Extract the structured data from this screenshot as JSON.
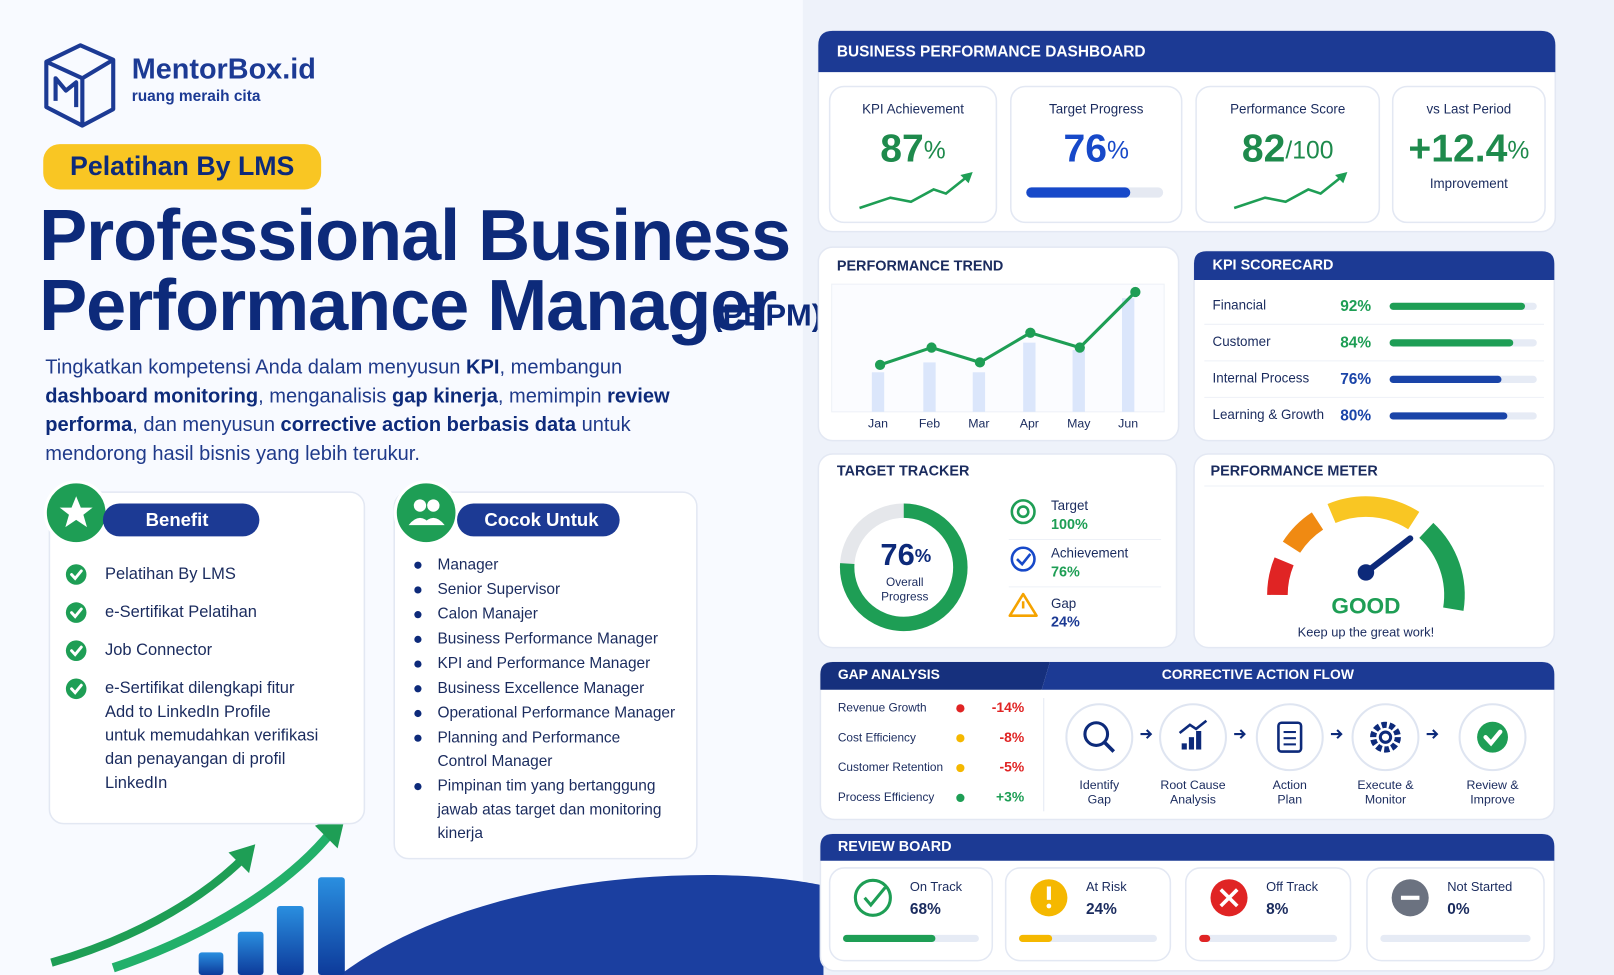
{
  "brand": {
    "name": "MentorBox.id",
    "tagline": "ruang meraih cita"
  },
  "badge": "Pelatihan By LMS",
  "title": {
    "line1": "Professional Business",
    "line2": "Performance Manager",
    "abbr": "(PBPM)"
  },
  "description": [
    [
      {
        "t": "Tingkatkan kompetensi Anda dalam menyusun "
      },
      {
        "t": "KPI",
        "b": true
      },
      {
        "t": ", membangun"
      }
    ],
    [
      {
        "t": "dashboard monitoring",
        "b": true
      },
      {
        "t": ", menganalisis "
      },
      {
        "t": "gap kinerja",
        "b": true
      },
      {
        "t": ", memimpin "
      },
      {
        "t": "review",
        "b": true
      }
    ],
    [
      {
        "t": "performa",
        "b": true
      },
      {
        "t": ", dan menyusun "
      },
      {
        "t": "corrective action berbasis data",
        "b": true
      },
      {
        "t": " untuk"
      }
    ],
    [
      {
        "t": "mendorong hasil bisnis yang lebih terukur."
      }
    ]
  ],
  "benefit": {
    "title": "Benefit",
    "items": [
      [
        "Pelatihan By LMS"
      ],
      [
        "e-Sertifikat Pelatihan"
      ],
      [
        "Job Connector"
      ],
      [
        "e-Sertifikat dilengkapi fitur",
        "Add to LinkedIn Profile",
        "untuk memudahkan verifikasi",
        "dan penayangan di profil",
        "LinkedIn"
      ]
    ]
  },
  "cocok": {
    "title": "Cocok Untuk",
    "items": [
      [
        "Manager"
      ],
      [
        "Senior Supervisor"
      ],
      [
        "Calon Manajer"
      ],
      [
        "Business Performance Manager"
      ],
      [
        "KPI and Performance Manager"
      ],
      [
        "Business Excellence Manager"
      ],
      [
        "Operational Performance Manager"
      ],
      [
        "Planning and Performance",
        "Control Manager"
      ],
      [
        "Pimpinan tim yang bertanggung",
        "jawab atas target dan monitoring",
        "kinerja"
      ]
    ]
  },
  "dashboard": {
    "title": "BUSINESS PERFORMANCE DASHBOARD",
    "kpis": [
      {
        "label": "KPI Achievement",
        "value": 87,
        "unit": "%"
      },
      {
        "label": "Target Progress",
        "value": 76,
        "unit": "%"
      },
      {
        "label": "Performance Score",
        "value": 82,
        "unit": "/100"
      },
      {
        "label": "vs Last Period",
        "value": "+12.4",
        "unit": "%",
        "note": "Improvement"
      }
    ],
    "trend": {
      "title": "PERFORMANCE TREND",
      "categories": [
        "Jan",
        "Feb",
        "Mar",
        "Apr",
        "May",
        "Jun"
      ],
      "line_values": [
        38,
        52,
        40,
        64,
        52,
        97
      ],
      "bar_values": [
        32,
        40,
        32,
        56,
        50,
        92
      ],
      "ylim": [
        0,
        100
      ]
    },
    "scorecard": {
      "title": "KPI SCORECARD",
      "items": [
        {
          "name": "Financial",
          "value": 92,
          "label": "92%",
          "color": "#1e9e55"
        },
        {
          "name": "Customer",
          "value": 84,
          "label": "84%",
          "color": "#1e9e55"
        },
        {
          "name": "Internal Process",
          "value": 76,
          "label": "76%",
          "color": "#1a44a8"
        },
        {
          "name": "Learning & Growth",
          "value": 80,
          "label": "80%",
          "color": "#1a44a8"
        }
      ]
    },
    "target_tracker": {
      "title": "TARGET TRACKER",
      "value": 76,
      "unit": "%",
      "caption": [
        "Overall",
        "Progress"
      ],
      "items": [
        {
          "name": "Target",
          "label": "100%"
        },
        {
          "name": "Achievement",
          "label": "76%"
        },
        {
          "name": "Gap",
          "label": "24%"
        }
      ]
    },
    "meter": {
      "title": "PERFORMANCE METER",
      "status": "GOOD",
      "message": "Keep up the great work!"
    },
    "gap": {
      "title": "GAP ANALYSIS",
      "items": [
        {
          "name": "Revenue Growth",
          "label": "-14%",
          "color": "#e02424"
        },
        {
          "name": "Cost Efficiency",
          "label": "-8%",
          "color": "#f5b800"
        },
        {
          "name": "Customer Retention",
          "label": "-5%",
          "color": "#f5b800"
        },
        {
          "name": "Process Efficiency",
          "label": "+3%",
          "color": "#1e9e55"
        }
      ]
    },
    "flow": {
      "title": "CORRECTIVE ACTION FLOW",
      "steps": [
        [
          "Identify",
          "Gap"
        ],
        [
          "Root Cause",
          "Analysis"
        ],
        [
          "Action",
          "Plan"
        ],
        [
          "Execute &",
          "Monitor"
        ],
        [
          "Review &",
          "Improve"
        ]
      ]
    },
    "review": {
      "title": "REVIEW BOARD",
      "items": [
        {
          "name": "On Track",
          "value": 68,
          "label": "68%",
          "color": "#1e9e55"
        },
        {
          "name": "At Risk",
          "value": 24,
          "label": "24%",
          "color": "#f5b800"
        },
        {
          "name": "Off Track",
          "value": 8,
          "label": "8%",
          "color": "#e02424"
        },
        {
          "name": "Not Started",
          "value": 0,
          "label": "0%",
          "color": "#6b7280"
        }
      ]
    }
  }
}
